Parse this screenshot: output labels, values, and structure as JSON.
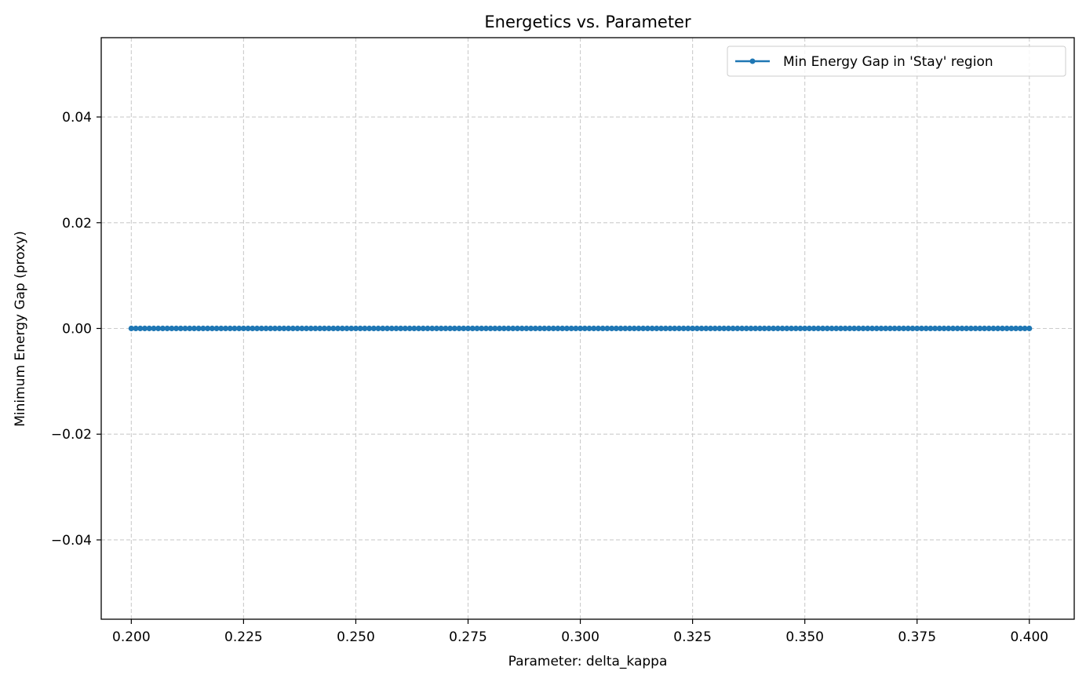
{
  "chart_data": {
    "type": "line",
    "title": "Energetics vs. Parameter",
    "xlabel": "Parameter: delta_kappa",
    "ylabel": "Minimum Energy Gap (proxy)",
    "xlim": [
      0.1933,
      0.41
    ],
    "ylim": [
      -0.055,
      0.055
    ],
    "x_ticks": [
      0.2,
      0.225,
      0.25,
      0.275,
      0.3,
      0.325,
      0.35,
      0.375,
      0.4
    ],
    "x_tick_labels": [
      "0.200",
      "0.225",
      "0.250",
      "0.275",
      "0.300",
      "0.325",
      "0.350",
      "0.375",
      "0.400"
    ],
    "y_ticks": [
      -0.04,
      -0.02,
      0.0,
      0.02,
      0.04
    ],
    "y_tick_labels": [
      "−0.04",
      "−0.02",
      "0.00",
      "0.02",
      "0.04"
    ],
    "grid": true,
    "legend_position": "top-right",
    "series": [
      {
        "name": "Min Energy Gap in 'Stay' region",
        "color": "#1f77b4",
        "marker": "dot",
        "x_start": 0.2,
        "x_end": 0.4,
        "num_points": 201,
        "y_value": 0.0
      }
    ]
  }
}
